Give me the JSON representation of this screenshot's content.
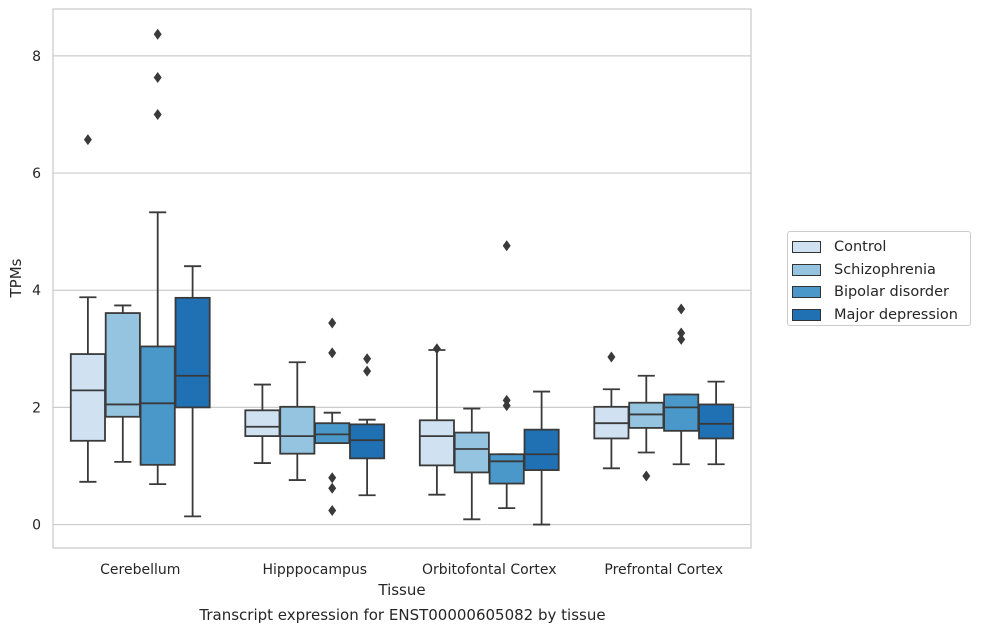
{
  "chart_data": {
    "type": "boxplot",
    "title": "",
    "caption": "Transcript expression for ENST00000605082 by tissue",
    "xlabel": "Tissue",
    "ylabel": "TPMs",
    "ylim": [
      -0.4,
      8.8
    ],
    "yticks": [
      0,
      2,
      4,
      6,
      8
    ],
    "grid": "horizontal",
    "legend_position": "right",
    "categories": [
      "Cerebellum",
      "Hipppocampus",
      "Orbitofontal Cortex",
      "Prefrontal Cortex"
    ],
    "series": [
      {
        "name": "Control",
        "color": "#d0e1f2",
        "boxes": [
          {
            "whisker_low": 0.73,
            "q1": 1.43,
            "median": 2.29,
            "q3": 2.91,
            "whisker_high": 3.88,
            "outliers": [
              6.57
            ]
          },
          {
            "whisker_low": 1.05,
            "q1": 1.51,
            "median": 1.67,
            "q3": 1.95,
            "whisker_high": 2.39,
            "outliers": []
          },
          {
            "whisker_low": 0.51,
            "q1": 1.01,
            "median": 1.51,
            "q3": 1.78,
            "whisker_high": 2.98,
            "outliers": [
              3.0
            ]
          },
          {
            "whisker_low": 0.96,
            "q1": 1.47,
            "median": 1.73,
            "q3": 2.01,
            "whisker_high": 2.31,
            "outliers": [
              2.86
            ]
          }
        ]
      },
      {
        "name": "Schizophrenia",
        "color": "#94c4df",
        "boxes": [
          {
            "whisker_low": 1.07,
            "q1": 1.84,
            "median": 2.05,
            "q3": 3.61,
            "whisker_high": 3.74,
            "outliers": []
          },
          {
            "whisker_low": 0.76,
            "q1": 1.21,
            "median": 1.51,
            "q3": 2.01,
            "whisker_high": 2.77,
            "outliers": []
          },
          {
            "whisker_low": 0.09,
            "q1": 0.89,
            "median": 1.29,
            "q3": 1.57,
            "whisker_high": 1.98,
            "outliers": []
          },
          {
            "whisker_low": 1.23,
            "q1": 1.65,
            "median": 1.88,
            "q3": 2.08,
            "whisker_high": 2.54,
            "outliers": [
              0.83
            ]
          }
        ]
      },
      {
        "name": "Bipolar disorder",
        "color": "#4a98c9",
        "boxes": [
          {
            "whisker_low": 0.69,
            "q1": 1.02,
            "median": 2.07,
            "q3": 3.04,
            "whisker_high": 5.33,
            "outliers": [
              7.0,
              7.63,
              8.37
            ]
          },
          {
            "whisker_low": 1.39,
            "q1": 1.39,
            "median": 1.54,
            "q3": 1.73,
            "whisker_high": 1.91,
            "outliers": [
              2.93,
              3.44,
              0.8,
              0.62,
              0.24
            ]
          },
          {
            "whisker_low": 0.28,
            "q1": 0.7,
            "median": 1.08,
            "q3": 1.2,
            "whisker_high": 1.2,
            "outliers": [
              2.03,
              2.12,
              4.76
            ]
          },
          {
            "whisker_low": 1.03,
            "q1": 1.6,
            "median": 2.0,
            "q3": 2.22,
            "whisker_high": 2.22,
            "outliers": [
              3.16,
              3.27,
              3.68
            ]
          }
        ]
      },
      {
        "name": "Major depression",
        "color": "#2070b4",
        "boxes": [
          {
            "whisker_low": 0.14,
            "q1": 2.0,
            "median": 2.54,
            "q3": 3.87,
            "whisker_high": 4.41,
            "outliers": []
          },
          {
            "whisker_low": 0.5,
            "q1": 1.13,
            "median": 1.44,
            "q3": 1.71,
            "whisker_high": 1.79,
            "outliers": [
              2.62,
              2.83
            ]
          },
          {
            "whisker_low": 0.0,
            "q1": 0.93,
            "median": 1.2,
            "q3": 1.62,
            "whisker_high": 2.27,
            "outliers": []
          },
          {
            "whisker_low": 1.03,
            "q1": 1.47,
            "median": 1.72,
            "q3": 2.05,
            "whisker_high": 2.44,
            "outliers": []
          }
        ]
      }
    ]
  }
}
